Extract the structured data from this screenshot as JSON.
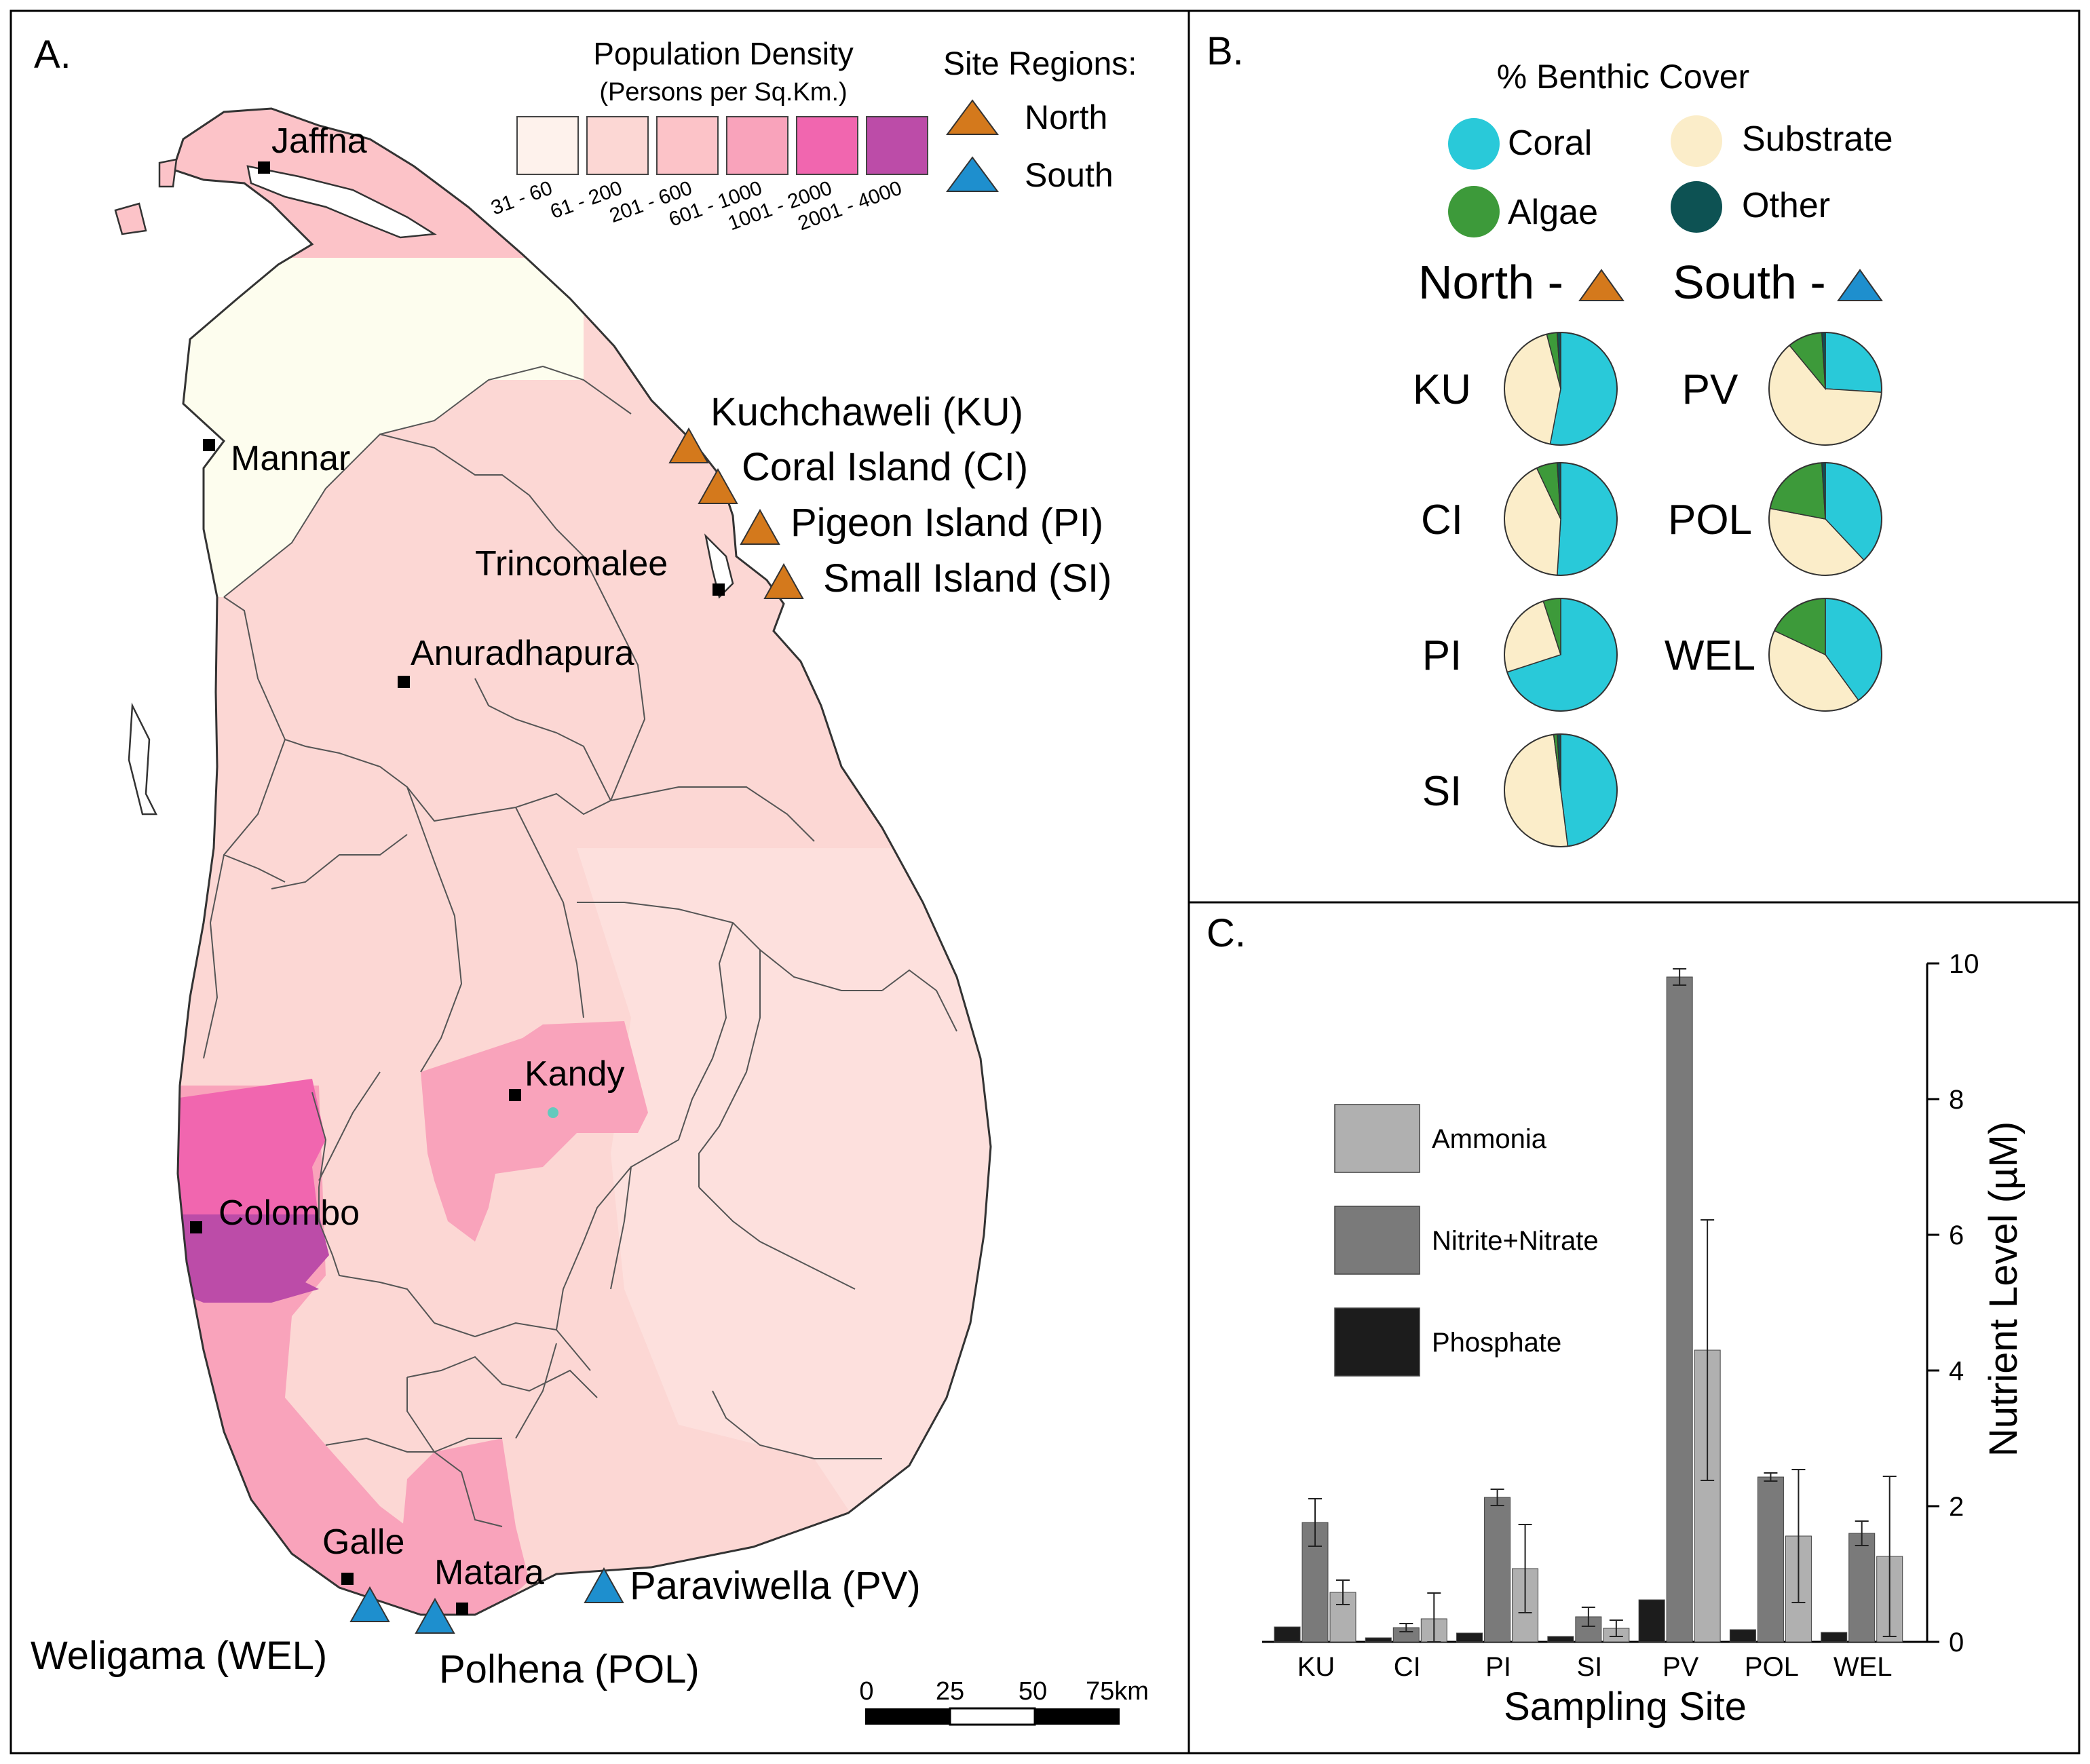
{
  "panel_a": {
    "label": "A.",
    "legend": {
      "title": "Population Density",
      "subtitle": "(Persons per Sq.Km.)",
      "classes": [
        {
          "range": "31 - 60",
          "color": "#fef2ec"
        },
        {
          "range": "61 - 200",
          "color": "#fcd7d4"
        },
        {
          "range": "201 - 600",
          "color": "#fcc3c8"
        },
        {
          "range": "601 - 1000",
          "color": "#f9a3bb"
        },
        {
          "range": "1001 - 2000",
          "color": "#f166af"
        },
        {
          "range": "2001 - 4000",
          "color": "#bc4ca8"
        }
      ],
      "site_title": "Site Regions:",
      "site_regions": [
        {
          "name": "North",
          "color": "#d4791c"
        },
        {
          "name": "South",
          "color": "#1e8fce"
        }
      ]
    },
    "cities": [
      "Jaffna",
      "Mannar",
      "Trincomalee",
      "Anuradhapura",
      "Kandy",
      "Colombo",
      "Galle",
      "Matara"
    ],
    "sites": [
      {
        "label": "Kuchchaweli (KU)",
        "region": "North"
      },
      {
        "label": "Coral Island (CI)",
        "region": "North"
      },
      {
        "label": "Pigeon Island (PI)",
        "region": "North"
      },
      {
        "label": "Small Island (SI)",
        "region": "North"
      },
      {
        "label": "Paraviwella (PV)",
        "region": "South"
      },
      {
        "label": "Weligama (WEL)",
        "region": "South"
      },
      {
        "label": "Polhena (POL)",
        "region": "South"
      }
    ],
    "scale_bar": {
      "ticks": [
        "0",
        "25",
        "50",
        "75km"
      ]
    }
  },
  "panel_b": {
    "label": "B.",
    "title": "% Benthic Cover",
    "categories": [
      {
        "name": "Coral",
        "color": "#29c9d9"
      },
      {
        "name": "Substrate",
        "color": "#fbedc9"
      },
      {
        "name": "Algae",
        "color": "#3d9a3a"
      },
      {
        "name": "Other",
        "color": "#0d5253"
      }
    ],
    "north_label": "North -",
    "south_label": "South -",
    "chart_data": {
      "type": "pie",
      "title": "% Benthic Cover",
      "order": [
        "Coral",
        "Substrate",
        "Algae",
        "Other"
      ],
      "north": [
        {
          "site": "KU",
          "values": [
            53,
            43,
            3,
            1
          ]
        },
        {
          "site": "CI",
          "values": [
            51,
            42,
            6,
            1
          ]
        },
        {
          "site": "PI",
          "values": [
            70,
            25,
            5,
            0
          ]
        },
        {
          "site": "SI",
          "values": [
            48,
            50,
            1,
            1
          ]
        }
      ],
      "south": [
        {
          "site": "PV",
          "values": [
            26,
            63,
            10,
            1
          ]
        },
        {
          "site": "POL",
          "values": [
            38,
            40,
            21,
            1
          ]
        },
        {
          "site": "WEL",
          "values": [
            40,
            42,
            18,
            0
          ]
        }
      ]
    }
  },
  "panel_c": {
    "label": "C.",
    "chart_data": {
      "type": "bar",
      "categories": [
        "KU",
        "CI",
        "PI",
        "SI",
        "PV",
        "POL",
        "WEL"
      ],
      "series": [
        {
          "name": "Phosphate",
          "color": "#1c1c1c",
          "values": [
            0.22,
            0.06,
            0.13,
            0.08,
            0.62,
            0.18,
            0.14
          ],
          "errors": [
            0,
            0,
            0,
            0,
            0,
            0,
            0
          ]
        },
        {
          "name": "Nitrite+Nitrate",
          "color": "#7a7a7a",
          "values": [
            1.76,
            0.21,
            2.13,
            0.37,
            9.8,
            2.43,
            1.6
          ],
          "errors": [
            0.35,
            0.06,
            0.12,
            0.14,
            0.12,
            0.06,
            0.18
          ]
        },
        {
          "name": "Ammonia",
          "color": "#b0b0b0",
          "values": [
            0.73,
            0.34,
            1.08,
            0.2,
            4.3,
            1.56,
            1.26
          ],
          "errors": [
            0.18,
            0.38,
            0.65,
            0.12,
            1.92,
            0.98,
            1.18
          ]
        }
      ],
      "legend_order": [
        "Ammonia",
        "Nitrite+Nitrate",
        "Phosphate"
      ],
      "xlabel": "Sampling Site",
      "ylabel": "Nutrient Level (µM)",
      "ylim": [
        0,
        10
      ],
      "yticks": [
        0,
        2,
        4,
        6,
        8,
        10
      ],
      "title": ""
    }
  }
}
